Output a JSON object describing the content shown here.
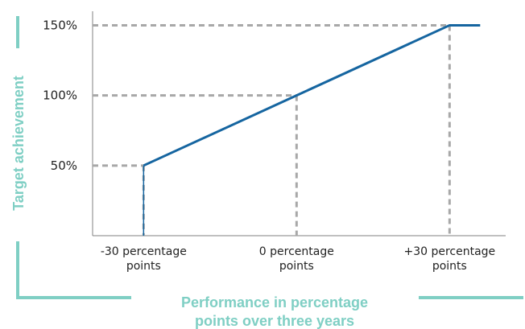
{
  "colors": {
    "line": "#1565a0",
    "guide": "#a8a8a8",
    "axis": "#808080",
    "accent": "#7fcfc4",
    "text": "#222222"
  },
  "chart_data": {
    "type": "line",
    "title": "",
    "xlabel_lines": [
      "Performance in percentage",
      "points over three years"
    ],
    "ylabel": "Target achievement",
    "x": [
      -30,
      0,
      30,
      36
    ],
    "y": [
      50,
      100,
      150,
      150
    ],
    "xlim": [
      -40,
      41
    ],
    "ylim": [
      0,
      160
    ],
    "yticks": [
      {
        "value": 50,
        "label": "50%"
      },
      {
        "value": 100,
        "label": "100%"
      },
      {
        "value": 150,
        "label": "150%"
      }
    ],
    "xticks": [
      {
        "value": -30,
        "lines": [
          "-30 percentage",
          "points"
        ]
      },
      {
        "value": 0,
        "lines": [
          "0 percentage",
          "points"
        ]
      },
      {
        "value": 30,
        "lines": [
          "+30 percentage",
          "points"
        ]
      }
    ],
    "guides": [
      {
        "x": -30,
        "y": 50
      },
      {
        "x": 0,
        "y": 100
      },
      {
        "x": 30,
        "y": 150
      }
    ],
    "grid": false
  }
}
